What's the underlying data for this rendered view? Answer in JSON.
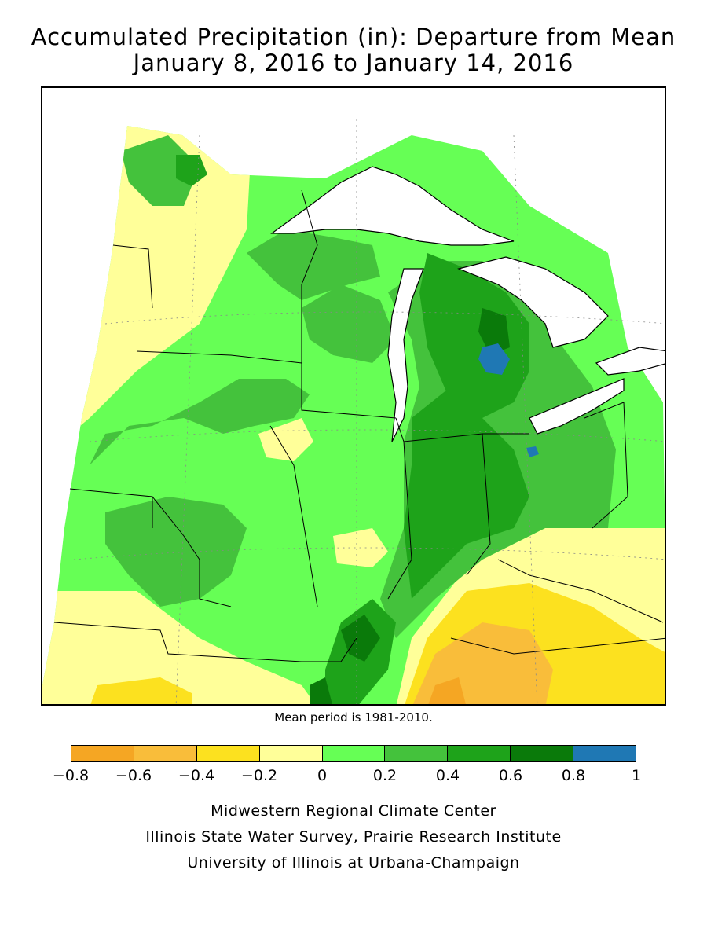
{
  "title_line1": "Accumulated Precipitation (in): Departure from Mean",
  "title_line2": "January 8, 2016 to January 14, 2016",
  "mean_period_note": "Mean period is 1981-2010.",
  "legend": {
    "colors": [
      "#f5a623",
      "#f9bd3a",
      "#fce11f",
      "#ffff99",
      "#66ff55",
      "#44c23c",
      "#1ea31a",
      "#0a7a0a",
      "#1f78b4"
    ],
    "ticks": [
      "−0.8",
      "−0.6",
      "−0.4",
      "−0.2",
      "0",
      "0.2",
      "0.4",
      "0.6",
      "0.8",
      "1"
    ]
  },
  "credits": [
    "Midwestern Regional Climate Center",
    "Illinois State Water Survey, Prairie Research Institute",
    "University of Illinois at Urbana-Champaign"
  ],
  "map": {
    "region": "Midwest United States",
    "variable": "precipitation departure from mean",
    "units": "in"
  }
}
